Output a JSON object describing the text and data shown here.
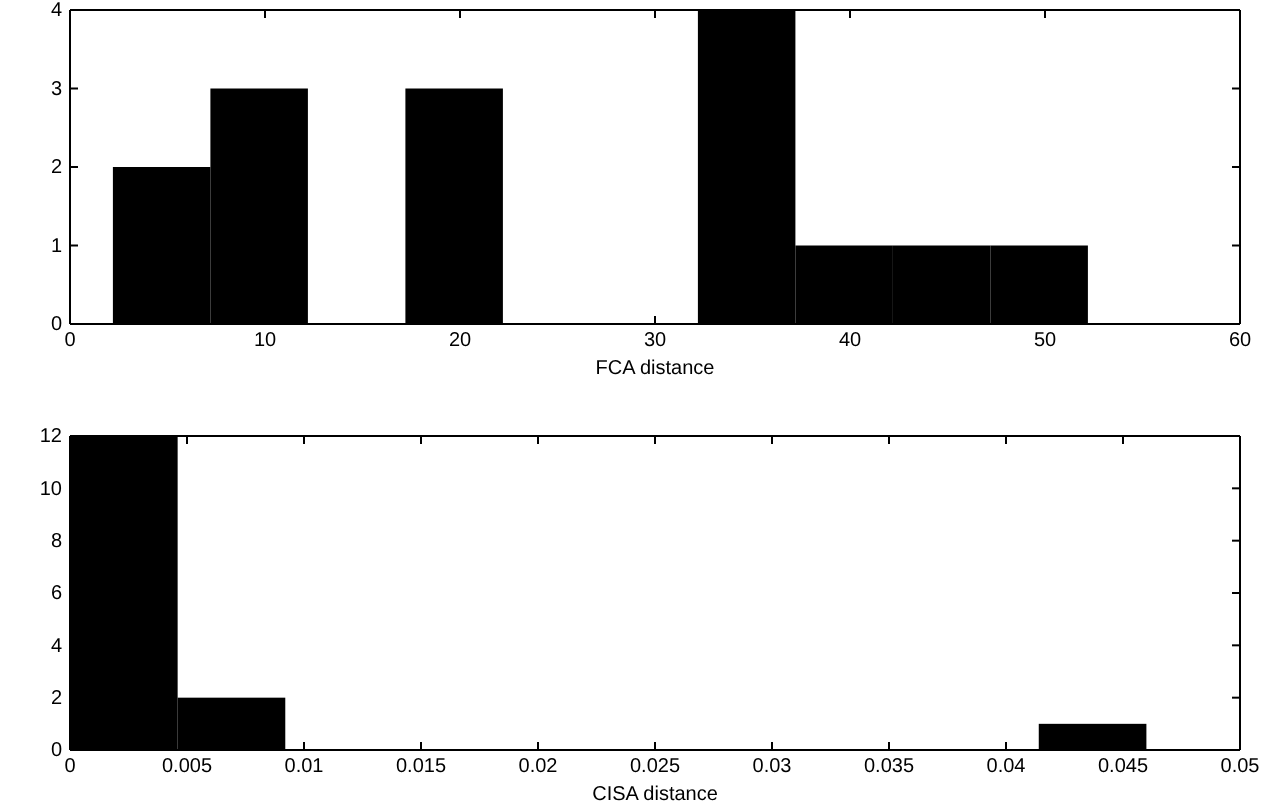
{
  "chart_data": [
    {
      "type": "histogram",
      "xlabel": "FCA distance",
      "bins": [
        2.2,
        7.2,
        12.2,
        17.2,
        22.2,
        27.2,
        32.2,
        37.2,
        42.2,
        47.2,
        52.2
      ],
      "values": [
        2,
        3,
        0,
        3,
        0,
        0,
        4,
        1,
        1,
        1
      ],
      "color": "#000000",
      "xlim": [
        0,
        60
      ],
      "xticks": [
        0,
        10,
        20,
        30,
        40,
        50,
        60
      ],
      "ylim": [
        0,
        4
      ],
      "yticks": [
        0,
        1,
        2,
        3,
        4
      ],
      "grid": false
    },
    {
      "type": "histogram",
      "xlabel": "CISA distance",
      "bins": [
        0,
        0.0046,
        0.0092,
        0.0138,
        0.0184,
        0.023,
        0.0276,
        0.0322,
        0.0368,
        0.0414,
        0.046
      ],
      "values": [
        12,
        2,
        0,
        0,
        0,
        0,
        0,
        0,
        0,
        1
      ],
      "color": "#000000",
      "xlim": [
        0,
        0.05
      ],
      "xticks": [
        0,
        0.005,
        0.01,
        0.015,
        0.02,
        0.025,
        0.03,
        0.035,
        0.04,
        0.045,
        0.05
      ],
      "ylim": [
        0,
        12
      ],
      "yticks": [
        0,
        2,
        4,
        6,
        8,
        10,
        12
      ],
      "grid": false
    }
  ]
}
